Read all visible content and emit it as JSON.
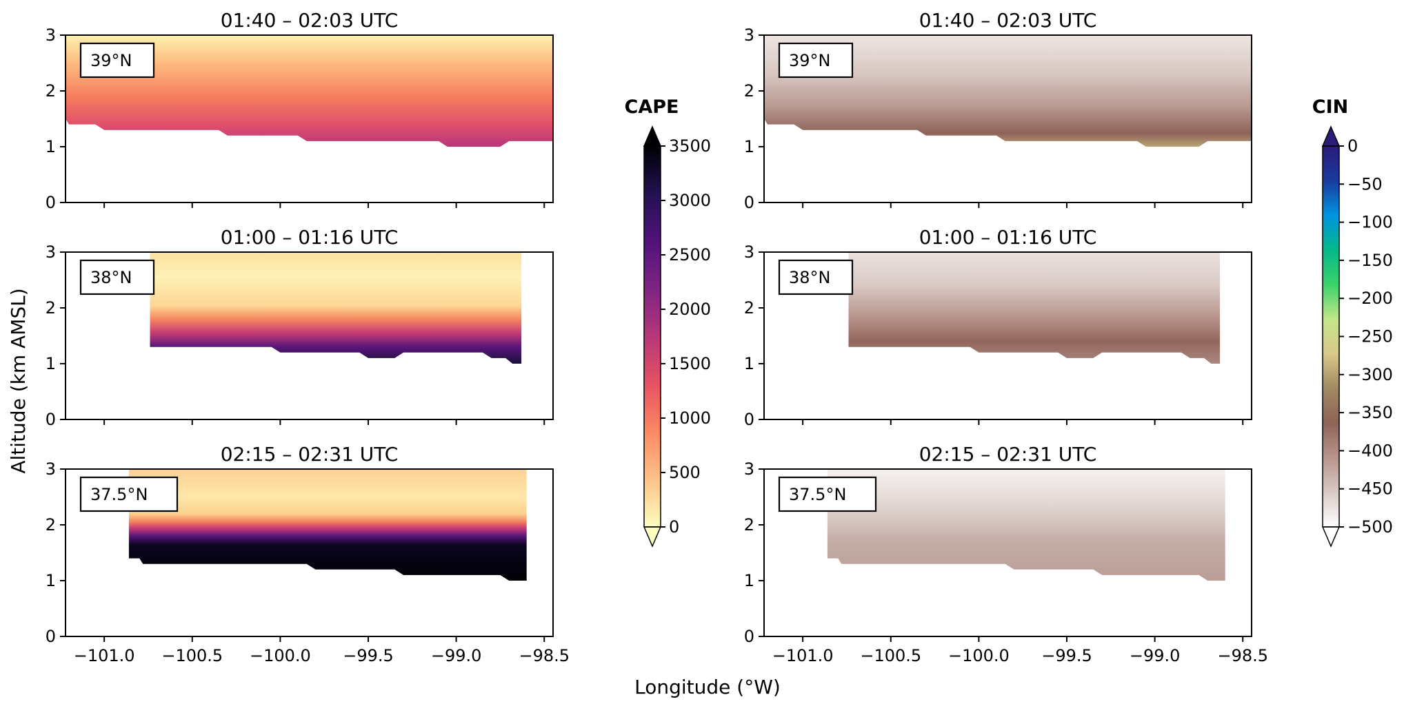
{
  "figure": {
    "xlabel": "Longitude (°W)",
    "ylabel": "Altitude (km AMSL)"
  },
  "chart_data": [
    {
      "id": "cape-39",
      "type": "heatmap",
      "variable": "CAPE",
      "col": 0,
      "row": 0,
      "title": "01:40 – 02:03 UTC",
      "latitude_label": "39°N",
      "xlim": [
        -101.22,
        -98.45
      ],
      "ylim": [
        0,
        3
      ],
      "xticks": [
        -101.0,
        -100.5,
        -100.0,
        -99.5,
        -99.0,
        -98.5
      ],
      "xtick_labels_shown": false,
      "yticks": [
        0,
        1,
        2,
        3
      ],
      "x_range": [
        -101.22,
        -98.45
      ],
      "base_km": [
        [
          -101.22,
          1.5
        ],
        [
          -101.2,
          1.4
        ],
        [
          -101.05,
          1.4
        ],
        [
          -101.0,
          1.3
        ],
        [
          -100.35,
          1.3
        ],
        [
          -100.3,
          1.2
        ],
        [
          -99.9,
          1.2
        ],
        [
          -99.85,
          1.1
        ],
        [
          -99.1,
          1.1
        ],
        [
          -99.05,
          1.0
        ],
        [
          -98.75,
          1.0
        ],
        [
          -98.7,
          1.1
        ],
        [
          -98.45,
          1.1
        ]
      ]
    },
    {
      "id": "cape-38",
      "type": "heatmap",
      "variable": "CAPE",
      "col": 0,
      "row": 1,
      "title": "01:00 – 01:16 UTC",
      "latitude_label": "38°N",
      "xlim": [
        -101.22,
        -98.45
      ],
      "ylim": [
        0,
        3
      ],
      "xticks": [
        -101.0,
        -100.5,
        -100.0,
        -99.5,
        -99.0,
        -98.5
      ],
      "xtick_labels_shown": false,
      "yticks": [
        0,
        1,
        2,
        3
      ],
      "x_range": [
        -100.74,
        -98.63
      ],
      "base_km": [
        [
          -100.74,
          1.3
        ],
        [
          -100.05,
          1.3
        ],
        [
          -100.0,
          1.2
        ],
        [
          -99.55,
          1.2
        ],
        [
          -99.5,
          1.1
        ],
        [
          -99.35,
          1.1
        ],
        [
          -99.3,
          1.2
        ],
        [
          -98.85,
          1.2
        ],
        [
          -98.8,
          1.1
        ],
        [
          -98.72,
          1.1
        ],
        [
          -98.68,
          1.0
        ],
        [
          -98.63,
          1.0
        ]
      ]
    },
    {
      "id": "cape-37-5",
      "type": "heatmap",
      "variable": "CAPE",
      "col": 0,
      "row": 2,
      "title": "02:15 – 02:31 UTC",
      "latitude_label": "37.5°N",
      "xlim": [
        -101.22,
        -98.45
      ],
      "ylim": [
        0,
        3
      ],
      "xticks": [
        -101.0,
        -100.5,
        -100.0,
        -99.5,
        -99.0,
        -98.5
      ],
      "xtick_labels_shown": true,
      "yticks": [
        0,
        1,
        2,
        3
      ],
      "x_range": [
        -100.86,
        -98.6
      ],
      "base_km": [
        [
          -100.86,
          1.4
        ],
        [
          -100.8,
          1.4
        ],
        [
          -100.78,
          1.3
        ],
        [
          -99.85,
          1.3
        ],
        [
          -99.8,
          1.2
        ],
        [
          -99.35,
          1.2
        ],
        [
          -99.3,
          1.1
        ],
        [
          -98.75,
          1.1
        ],
        [
          -98.7,
          1.0
        ],
        [
          -98.6,
          1.0
        ]
      ]
    },
    {
      "id": "cin-39",
      "type": "heatmap",
      "variable": "CIN",
      "col": 1,
      "row": 0,
      "title": "01:40 – 02:03 UTC",
      "latitude_label": "39°N",
      "xlim": [
        -101.22,
        -98.45
      ],
      "ylim": [
        0,
        3
      ],
      "xticks": [
        -101.0,
        -100.5,
        -100.0,
        -99.5,
        -99.0,
        -98.5
      ],
      "xtick_labels_shown": false,
      "yticks": [
        0,
        1,
        2,
        3
      ],
      "x_range": [
        -101.22,
        -98.45
      ],
      "base_km": [
        [
          -101.22,
          1.5
        ],
        [
          -101.2,
          1.4
        ],
        [
          -101.05,
          1.4
        ],
        [
          -101.0,
          1.3
        ],
        [
          -100.35,
          1.3
        ],
        [
          -100.3,
          1.2
        ],
        [
          -99.9,
          1.2
        ],
        [
          -99.85,
          1.1
        ],
        [
          -99.1,
          1.1
        ],
        [
          -99.05,
          1.0
        ],
        [
          -98.75,
          1.0
        ],
        [
          -98.7,
          1.1
        ],
        [
          -98.45,
          1.1
        ]
      ]
    },
    {
      "id": "cin-38",
      "type": "heatmap",
      "variable": "CIN",
      "col": 1,
      "row": 1,
      "title": "01:00 – 01:16 UTC",
      "latitude_label": "38°N",
      "xlim": [
        -101.22,
        -98.45
      ],
      "ylim": [
        0,
        3
      ],
      "xticks": [
        -101.0,
        -100.5,
        -100.0,
        -99.5,
        -99.0,
        -98.5
      ],
      "xtick_labels_shown": false,
      "yticks": [
        0,
        1,
        2,
        3
      ],
      "x_range": [
        -100.74,
        -98.63
      ],
      "base_km": [
        [
          -100.74,
          1.3
        ],
        [
          -100.05,
          1.3
        ],
        [
          -100.0,
          1.2
        ],
        [
          -99.55,
          1.2
        ],
        [
          -99.5,
          1.1
        ],
        [
          -99.35,
          1.1
        ],
        [
          -99.3,
          1.2
        ],
        [
          -98.85,
          1.2
        ],
        [
          -98.8,
          1.1
        ],
        [
          -98.72,
          1.1
        ],
        [
          -98.68,
          1.0
        ],
        [
          -98.63,
          1.0
        ]
      ]
    },
    {
      "id": "cin-37-5",
      "type": "heatmap",
      "variable": "CIN",
      "col": 1,
      "row": 2,
      "title": "02:15 – 02:31 UTC",
      "latitude_label": "37.5°N",
      "xlim": [
        -101.22,
        -98.45
      ],
      "ylim": [
        0,
        3
      ],
      "xticks": [
        -101.0,
        -100.5,
        -100.0,
        -99.5,
        -99.0,
        -98.5
      ],
      "xtick_labels_shown": true,
      "yticks": [
        0,
        1,
        2,
        3
      ],
      "x_range": [
        -100.86,
        -98.6
      ],
      "base_km": [
        [
          -100.86,
          1.4
        ],
        [
          -100.8,
          1.4
        ],
        [
          -100.78,
          1.3
        ],
        [
          -99.85,
          1.3
        ],
        [
          -99.8,
          1.2
        ],
        [
          -99.35,
          1.2
        ],
        [
          -99.3,
          1.1
        ],
        [
          -98.75,
          1.1
        ],
        [
          -98.7,
          1.0
        ],
        [
          -98.6,
          1.0
        ]
      ]
    }
  ],
  "colorbars": [
    {
      "id": "cape",
      "label": "CAPE",
      "range": [
        0,
        3500
      ],
      "ticks": [
        0,
        500,
        1000,
        1500,
        2000,
        2500,
        3000,
        3500
      ],
      "extend": "max",
      "colormap": "magma_r",
      "colors": [
        "#fcfdbf",
        "#fec287",
        "#fc8961",
        "#e75263",
        "#b73779",
        "#7e2482",
        "#51127c",
        "#221150",
        "#000004"
      ]
    },
    {
      "id": "cin",
      "label": "CIN",
      "range": [
        -500,
        0
      ],
      "ticks": [
        0,
        -50,
        -100,
        -150,
        -200,
        -250,
        -300,
        -350,
        -400,
        -450,
        -500
      ],
      "extend": "both",
      "colormap": "diverging brown-green-blue",
      "colors": [
        "#ffffff",
        "#d9cac6",
        "#b7948c",
        "#8f6358",
        "#a08a62",
        "#d9c98a",
        "#c4e68a",
        "#3ad36a",
        "#05b88a",
        "#0094e0",
        "#1a3a9e",
        "#2a1c78"
      ]
    }
  ]
}
